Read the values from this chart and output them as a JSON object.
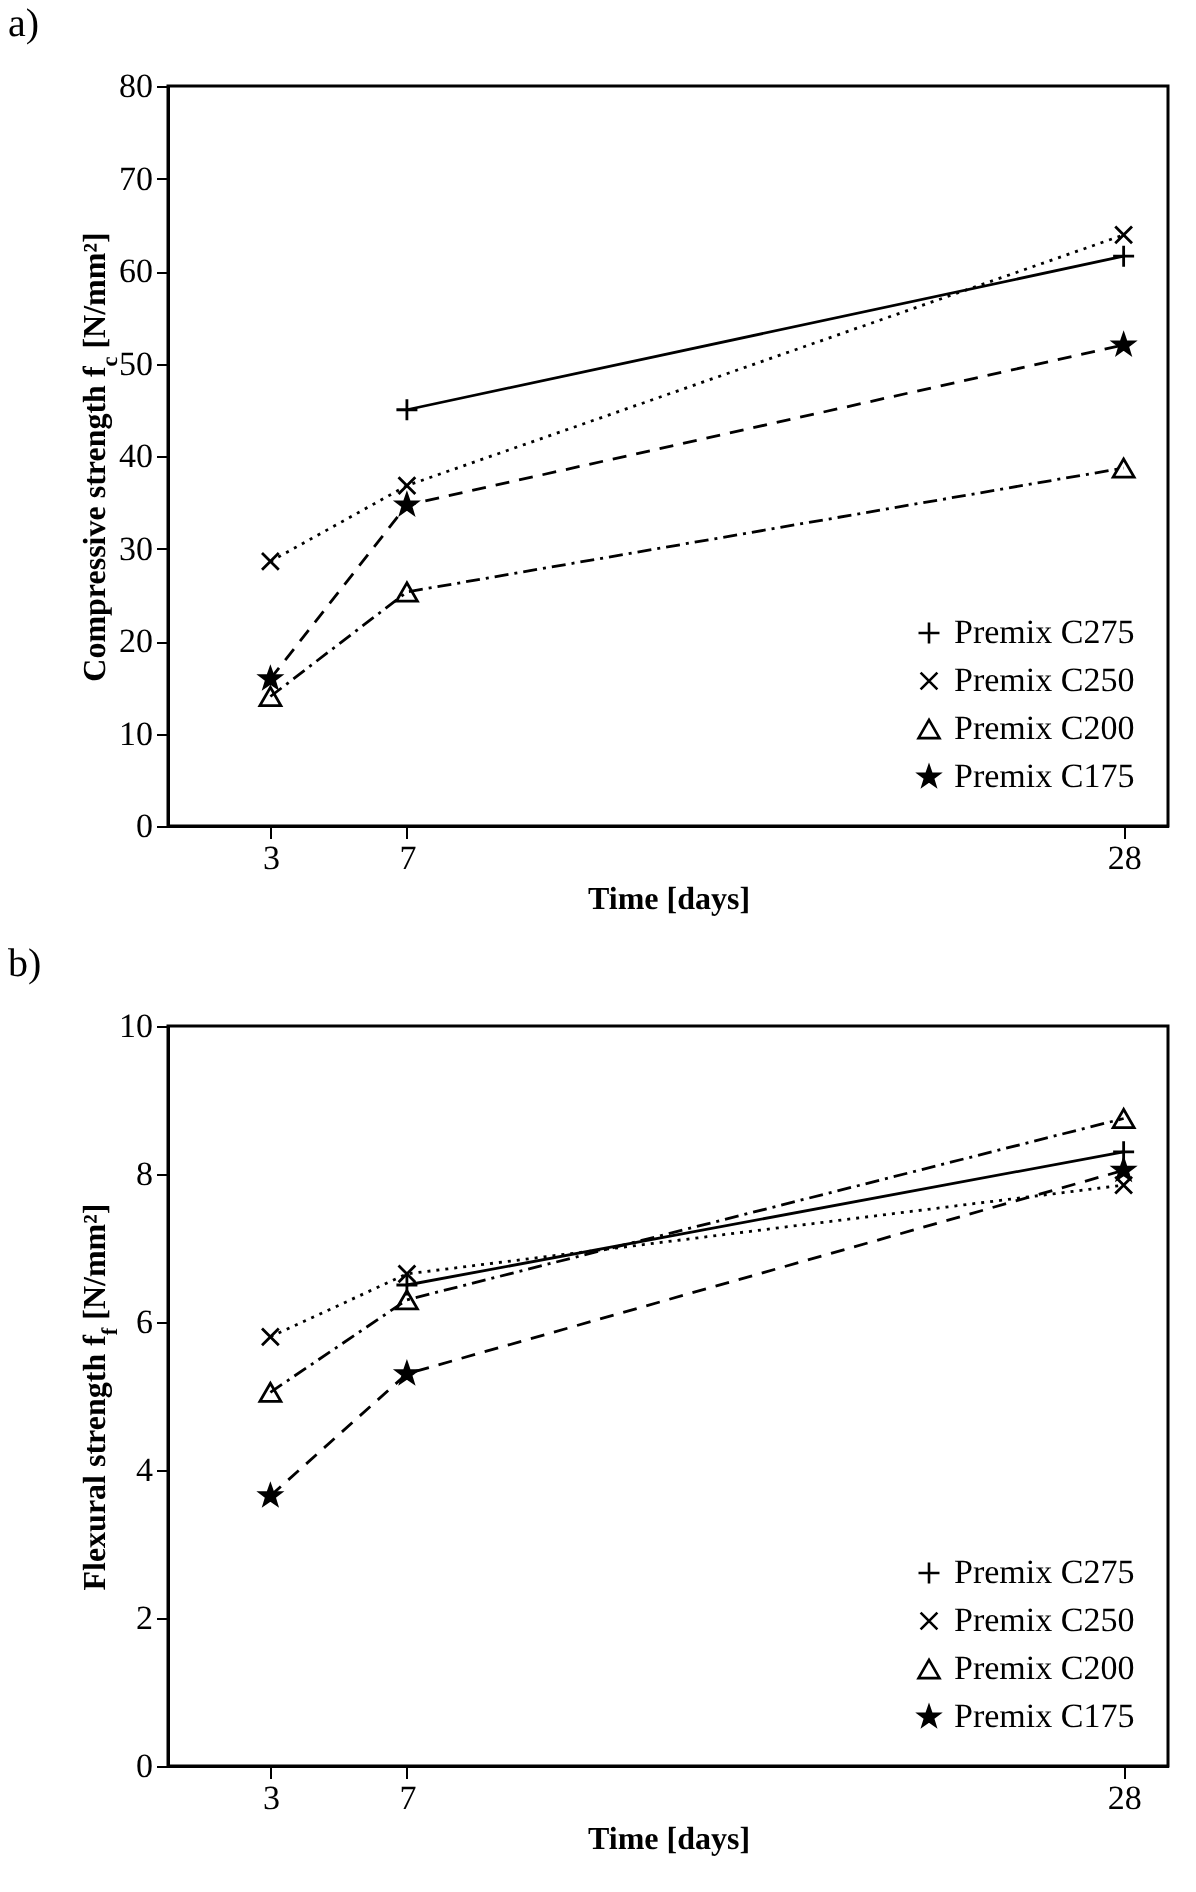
{
  "chart_data": [
    {
      "type": "line",
      "title": "a)",
      "xlabel": "Time [days]",
      "ylabel": "Compressive strength f$_{c}$ [N/mm²]",
      "x": [
        3,
        7,
        28
      ],
      "xlim": [
        0,
        29.3
      ],
      "xticks": [
        3,
        7,
        28
      ],
      "ylim": [
        0,
        80
      ],
      "yticks": [
        0,
        10,
        20,
        30,
        40,
        50,
        60,
        70,
        80
      ],
      "grid": false,
      "legend": "bottom right",
      "series": [
        {
          "name": "Premix C275",
          "color": "#000000",
          "marker": "cross",
          "line_style": "solid",
          "values": [
            null,
            45,
            61.6
          ]
        },
        {
          "name": "Premix C250",
          "color": "#000000",
          "marker": "x",
          "line_style": "dotted",
          "values": [
            28.6,
            36.8,
            63.9
          ]
        },
        {
          "name": "Premix C200",
          "color": "#000000",
          "marker": "triangle",
          "line_style": "dashdot",
          "values": [
            14,
            25.3,
            38.7
          ]
        },
        {
          "name": "Premix C175",
          "color": "#000000",
          "marker": "star",
          "line_style": "dashed",
          "values": [
            15.9,
            34.7,
            52
          ]
        }
      ]
    },
    {
      "type": "line",
      "title": "b)",
      "xlabel": "Time [days]",
      "ylabel": "Flexural strength f$_{f}$ [N/mm²]",
      "x": [
        3,
        7,
        28
      ],
      "xlim": [
        0,
        29.3
      ],
      "xticks": [
        3,
        7,
        28
      ],
      "ylim": [
        0,
        10
      ],
      "yticks": [
        0,
        2,
        4,
        6,
        8,
        10
      ],
      "grid": false,
      "legend": "bottom right",
      "series": [
        {
          "name": "Premix C275",
          "color": "#000000",
          "marker": "cross",
          "line_style": "solid",
          "values": [
            null,
            6.5,
            8.3
          ]
        },
        {
          "name": "Premix C250",
          "color": "#000000",
          "marker": "x",
          "line_style": "dotted",
          "values": [
            5.8,
            6.65,
            7.85
          ]
        },
        {
          "name": "Premix C200",
          "color": "#000000",
          "marker": "triangle",
          "line_style": "dashdot",
          "values": [
            5.05,
            6.3,
            8.75
          ]
        },
        {
          "name": "Premix C175",
          "color": "#000000",
          "marker": "star",
          "line_style": "dashed",
          "values": [
            3.65,
            5.3,
            8.05
          ]
        }
      ]
    }
  ]
}
